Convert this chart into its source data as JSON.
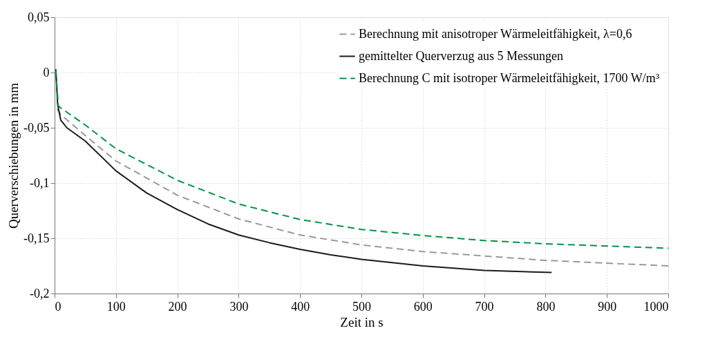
{
  "chart_data": {
    "type": "line",
    "xlabel": "Zeit in s",
    "ylabel": "Querverschiebungen in mm",
    "xlim": [
      0,
      1000
    ],
    "xticks": [
      0,
      100,
      200,
      300,
      400,
      500,
      600,
      700,
      800,
      900,
      1000
    ],
    "ylim": [
      -0.2,
      0.05
    ],
    "yticks": [
      {
        "value": -0.2,
        "label": "-0,2"
      },
      {
        "value": -0.15,
        "label": "-0,15"
      },
      {
        "value": -0.1,
        "label": "-0,1"
      },
      {
        "value": -0.05,
        "label": "-0,05"
      },
      {
        "value": 0,
        "label": "0"
      },
      {
        "value": 0.05,
        "label": "0,05"
      }
    ],
    "grid": true,
    "legend": "top right",
    "marker": "none",
    "series": [
      {
        "name": "Berechnung mit anisotroper Wärmeleitfähigkeit, λ=0,6",
        "color": "#999999",
        "line_style": "dashed",
        "x": [
          4,
          10,
          50,
          100,
          200,
          300,
          400,
          500,
          600,
          700,
          800,
          900,
          1000
        ],
        "values": [
          -0.033,
          -0.038,
          -0.057,
          -0.08,
          -0.111,
          -0.1325,
          -0.147,
          -0.156,
          -0.162,
          -0.166,
          -0.17,
          -0.1725,
          -0.175
        ]
      },
      {
        "name": "gemittelter Querverzug aus 5 Messungen",
        "color": "#1a1a1a",
        "line_style": "solid",
        "x": [
          2,
          5,
          10,
          20,
          50,
          100,
          150,
          200,
          250,
          300,
          350,
          400,
          450,
          500,
          600,
          700,
          810
        ],
        "values": [
          0.003,
          -0.029,
          -0.043,
          -0.05,
          -0.062,
          -0.089,
          -0.109,
          -0.124,
          -0.137,
          -0.147,
          -0.154,
          -0.16,
          -0.165,
          -0.169,
          -0.175,
          -0.179,
          -0.181
        ]
      },
      {
        "name": "Berechnung C mit isotroper Wärmeleitfähigkeit, 1700 W/m³",
        "color": "#009444",
        "line_style": "dashed",
        "x": [
          2,
          6,
          10,
          50,
          100,
          200,
          300,
          400,
          500,
          600,
          700,
          800,
          900,
          1000
        ],
        "values": [
          0.002,
          -0.03,
          -0.032,
          -0.0475,
          -0.069,
          -0.0975,
          -0.119,
          -0.133,
          -0.142,
          -0.1475,
          -0.152,
          -0.155,
          -0.157,
          -0.159
        ]
      }
    ]
  }
}
